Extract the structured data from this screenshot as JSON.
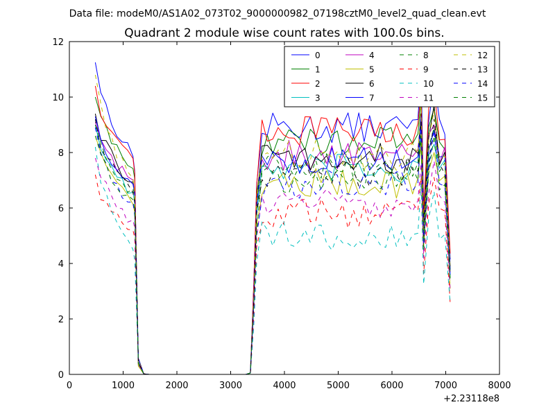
{
  "suptitle": "Data file: modeM0/AS1A02_073T02_9000000982_07198cztM0_level2_quad_clean.evt",
  "chart_data": {
    "type": "line",
    "title": "Quadrant 2 module wise count rates with 100.0s bins.",
    "xlabel": "",
    "ylabel": "",
    "x_offset_label": "+2.23118e8",
    "xlim": [
      0,
      8000
    ],
    "ylim": [
      0,
      12
    ],
    "x_ticks": [
      0,
      1000,
      2000,
      3000,
      4000,
      5000,
      6000,
      7000,
      8000
    ],
    "y_ticks": [
      0,
      2,
      4,
      6,
      8,
      10,
      12
    ],
    "grid": false,
    "legend_position": "top-right",
    "legend_columns": 4,
    "series": [
      {
        "name": "0",
        "color": "#0000ff",
        "dash": "solid",
        "base": 8.9,
        "first": 11.25,
        "peak": 11.1,
        "late": 10.6
      },
      {
        "name": "1",
        "color": "#008000",
        "dash": "solid",
        "base": 8.4,
        "first": 10.0,
        "peak": 9.9,
        "late": 9.6
      },
      {
        "name": "2",
        "color": "#ff0000",
        "dash": "solid",
        "base": 8.8,
        "first": 10.4,
        "peak": 10.2,
        "late": 10.3
      },
      {
        "name": "3",
        "color": "#00bfbf",
        "dash": "solid",
        "base": 7.4,
        "first": 9.0,
        "peak": 8.6,
        "late": 8.3
      },
      {
        "name": "4",
        "color": "#bf00bf",
        "dash": "solid",
        "base": 7.9,
        "first": 9.1,
        "peak": 9.2,
        "late": 9.0
      },
      {
        "name": "5",
        "color": "#bfbf00",
        "dash": "solid",
        "base": 6.9,
        "first": 8.6,
        "peak": 8.3,
        "late": 8.0
      },
      {
        "name": "6",
        "color": "#000000",
        "dash": "solid",
        "base": 7.8,
        "first": 9.4,
        "peak": 9.4,
        "late": 9.7
      },
      {
        "name": "7",
        "color": "#0000ff",
        "dash": "solid",
        "base": 7.7,
        "first": 9.3,
        "peak": 9.3,
        "late": 8.8
      },
      {
        "name": "8",
        "color": "#008000",
        "dash": "dashed",
        "base": 7.5,
        "first": 9.0,
        "peak": 9.0,
        "late": 8.9
      },
      {
        "name": "9",
        "color": "#ff0000",
        "dash": "dashed",
        "base": 5.8,
        "first": 7.2,
        "peak": 7.1,
        "late": 7.1
      },
      {
        "name": "10",
        "color": "#00bfbf",
        "dash": "dashed",
        "base": 5.0,
        "first": 8.2,
        "peak": 6.9,
        "late": 6.6
      },
      {
        "name": "11",
        "color": "#bf00bf",
        "dash": "dashed",
        "base": 6.2,
        "first": 7.8,
        "peak": 7.6,
        "late": 7.7
      },
      {
        "name": "12",
        "color": "#bfbf00",
        "dash": "dashed",
        "base": 7.9,
        "first": 10.8,
        "peak": 9.7,
        "late": 9.5
      },
      {
        "name": "13",
        "color": "#000000",
        "dash": "dashed",
        "base": 7.3,
        "first": 9.2,
        "peak": 9.1,
        "late": 9.2
      },
      {
        "name": "14",
        "color": "#0000ff",
        "dash": "dashed",
        "base": 6.9,
        "first": 8.9,
        "peak": 8.9,
        "late": 8.8
      },
      {
        "name": "15",
        "color": "#008000",
        "dash": "dashed",
        "base": 7.0,
        "first": 8.6,
        "peak": 8.6,
        "late": 8.6
      }
    ]
  }
}
